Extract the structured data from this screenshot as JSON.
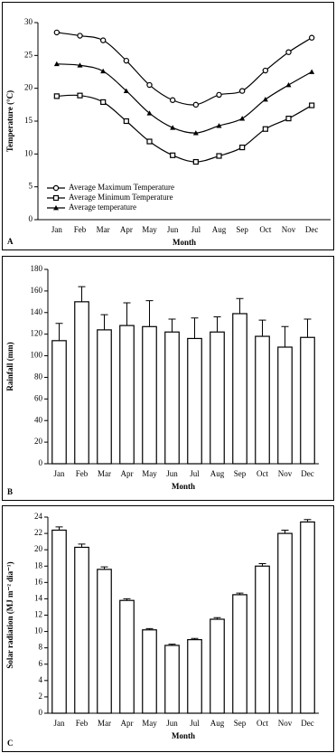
{
  "chart_data": [
    {
      "type": "line",
      "panel": "A",
      "xlabel": "Month",
      "ylabel": "Temperature (°C)",
      "categories": [
        "Jan",
        "Feb",
        "Mar",
        "Apr",
        "May",
        "Jun",
        "Jul",
        "Aug",
        "Sep",
        "Oct",
        "Nov",
        "Dec"
      ],
      "ylim": [
        0,
        30
      ],
      "yticks": [
        0,
        5,
        10,
        15,
        20,
        25,
        30
      ],
      "legend": "lower left",
      "series": [
        {
          "name": "Average Maximum Temperature",
          "color": "#000000",
          "marker": "circle",
          "values": [
            28.5,
            28,
            27.3,
            24.2,
            20.5,
            18.2,
            17.5,
            19,
            19.6,
            22.7,
            25.5,
            27.7
          ]
        },
        {
          "name": "Average Minimum Temperature",
          "color": "#000000",
          "marker": "square",
          "values": [
            18.8,
            18.9,
            17.9,
            15,
            11.9,
            9.8,
            8.8,
            9.7,
            11,
            13.8,
            15.4,
            17.4
          ]
        },
        {
          "name": "Average temperature",
          "color": "#000000",
          "marker": "triangle",
          "values": [
            23.7,
            23.5,
            22.6,
            19.6,
            16.2,
            14,
            13.2,
            14.3,
            15.4,
            18.3,
            20.5,
            22.5
          ]
        }
      ]
    },
    {
      "type": "bar",
      "panel": "B",
      "xlabel": "Month",
      "ylabel": "Rainfall (mm)",
      "categories": [
        "Jan",
        "Feb",
        "Mar",
        "Apr",
        "May",
        "Jun",
        "Jul",
        "Aug",
        "Sep",
        "Oct",
        "Nov",
        "Dec"
      ],
      "ylim": [
        0,
        180
      ],
      "yticks": [
        0,
        20,
        40,
        60,
        80,
        100,
        120,
        140,
        160,
        180
      ],
      "color": "#ffffff",
      "values": [
        114,
        150,
        124,
        128,
        127,
        122,
        116,
        122,
        139,
        118,
        108,
        117
      ],
      "errors": [
        16,
        14,
        14,
        21,
        24,
        12,
        19,
        14,
        14,
        15,
        19,
        17
      ]
    },
    {
      "type": "bar",
      "panel": "C",
      "xlabel": "Month",
      "ylabel": "Solar radiation (MJ m⁻² dia⁻¹)",
      "categories": [
        "Jan",
        "Feb",
        "Mar",
        "Apr",
        "May",
        "Jun",
        "Jul",
        "Aug",
        "Sep",
        "Oct",
        "Nov",
        "Dec"
      ],
      "ylim": [
        0,
        24
      ],
      "yticks": [
        0,
        2,
        4,
        6,
        8,
        10,
        12,
        14,
        16,
        18,
        20,
        22,
        24
      ],
      "color": "#ffffff",
      "values": [
        22.4,
        20.3,
        17.6,
        13.8,
        10.2,
        8.3,
        9,
        11.5,
        14.5,
        18,
        22,
        23.4
      ],
      "errors": [
        0.4,
        0.4,
        0.3,
        0.2,
        0.15,
        0.15,
        0.15,
        0.2,
        0.2,
        0.3,
        0.4,
        0.3
      ]
    }
  ]
}
